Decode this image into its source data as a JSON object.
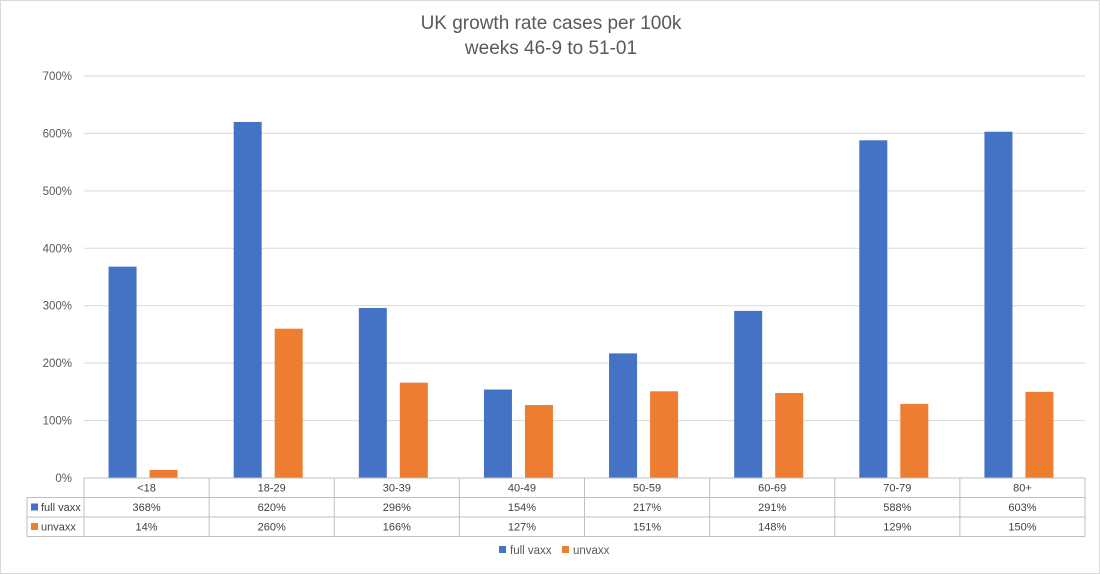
{
  "chart_data": {
    "type": "bar",
    "title": [
      "UK growth rate cases per 100k",
      "weeks 46-9 to 51-01"
    ],
    "categories": [
      "<18",
      "18-29",
      "30-39",
      "40-49",
      "50-59",
      "60-69",
      "70-79",
      "80+"
    ],
    "series": [
      {
        "name": "full vaxx",
        "color": "#4472c4",
        "values": [
          368,
          620,
          296,
          154,
          217,
          291,
          588,
          603
        ],
        "labels": [
          "368%",
          "620%",
          "296%",
          "154%",
          "217%",
          "291%",
          "588%",
          "603%"
        ]
      },
      {
        "name": "unvaxx",
        "color": "#ed7d31",
        "values": [
          14,
          260,
          166,
          127,
          151,
          148,
          129,
          150
        ],
        "labels": [
          "14%",
          "260%",
          "166%",
          "127%",
          "151%",
          "148%",
          "129%",
          "150%"
        ]
      }
    ],
    "ylim": [
      0,
      700
    ],
    "yticks": [
      0,
      100,
      200,
      300,
      400,
      500,
      600,
      700
    ],
    "ytick_labels": [
      "0%",
      "100%",
      "200%",
      "300%",
      "400%",
      "500%",
      "600%",
      "700%"
    ],
    "grid": true,
    "legend": "bottom-center",
    "data_table": true
  }
}
